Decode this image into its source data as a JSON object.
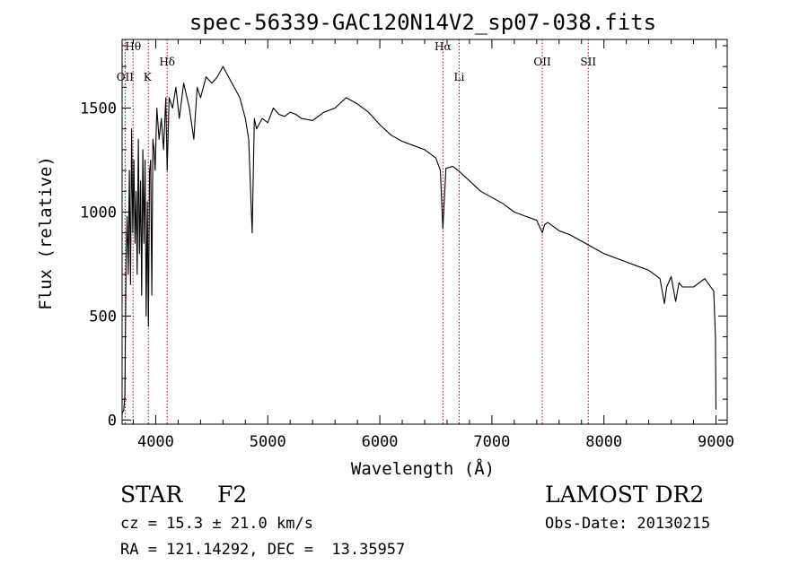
{
  "chart_data": {
    "type": "line",
    "title": "spec-56339-GAC120N14V2_sp07-038.fits",
    "xlabel": "Wavelength (Å)",
    "ylabel": "Flux (relative)",
    "xlim": [
      3700,
      9100
    ],
    "ylim": [
      -20,
      1830
    ],
    "x_ticks": [
      4000,
      5000,
      6000,
      7000,
      8000,
      9000
    ],
    "y_ticks": [
      0,
      500,
      1000,
      1500
    ],
    "grid": false,
    "line_color": "#000000",
    "marker_color": "#c00000",
    "lines": [
      {
        "name": "OII",
        "x": 3727
      },
      {
        "name": "Hθ",
        "x": 3798
      },
      {
        "name": "K",
        "x": 3934
      },
      {
        "name": "Hδ",
        "x": 4102
      },
      {
        "name": "Hα",
        "x": 6563
      },
      {
        "name": "Li",
        "x": 6708
      },
      {
        "name": "OII",
        "x": 7450
      },
      {
        "name": "SII",
        "x": 7860
      }
    ],
    "series": [
      {
        "x": [
          3700,
          3715,
          3725,
          3735,
          3745,
          3755,
          3765,
          3775,
          3785,
          3795,
          3805,
          3815,
          3825,
          3835,
          3845,
          3855,
          3865,
          3875,
          3885,
          3895,
          3905,
          3915,
          3925,
          3935,
          3945,
          3955,
          3965,
          3975,
          3985,
          3995,
          4010,
          4030,
          4050,
          4070,
          4090,
          4102,
          4120,
          4150,
          4180,
          4210,
          4250,
          4300,
          4340,
          4370,
          4400,
          4450,
          4500,
          4550,
          4600,
          4650,
          4700,
          4750,
          4800,
          4830,
          4861,
          4880,
          4900,
          4950,
          5000,
          5050,
          5100,
          5150,
          5200,
          5250,
          5300,
          5400,
          5500,
          5600,
          5700,
          5800,
          5900,
          6000,
          6100,
          6200,
          6300,
          6400,
          6500,
          6540,
          6563,
          6590,
          6650,
          6700,
          6800,
          6900,
          7000,
          7100,
          7200,
          7300,
          7400,
          7450,
          7470,
          7500,
          7600,
          7700,
          7800,
          7900,
          8000,
          8100,
          8200,
          8300,
          8400,
          8500,
          8540,
          8560,
          8600,
          8640,
          8670,
          8700,
          8800,
          8900,
          8980,
          8995,
          9000
        ],
        "y": [
          30,
          50,
          120,
          750,
          980,
          700,
          1200,
          650,
          1400,
          900,
          1250,
          850,
          1100,
          700,
          1350,
          800,
          1150,
          600,
          1300,
          850,
          1250,
          500,
          1050,
          450,
          1200,
          1250,
          600,
          1350,
          1300,
          1200,
          1500,
          1350,
          1450,
          1300,
          1550,
          1200,
          1550,
          1500,
          1600,
          1450,
          1620,
          1500,
          1350,
          1600,
          1550,
          1650,
          1620,
          1650,
          1700,
          1650,
          1600,
          1550,
          1450,
          1350,
          900,
          1450,
          1400,
          1450,
          1430,
          1500,
          1470,
          1460,
          1480,
          1470,
          1450,
          1440,
          1480,
          1500,
          1550,
          1520,
          1480,
          1420,
          1370,
          1340,
          1320,
          1300,
          1260,
          1200,
          920,
          1210,
          1220,
          1200,
          1150,
          1100,
          1070,
          1040,
          1000,
          980,
          960,
          900,
          940,
          950,
          910,
          890,
          860,
          830,
          800,
          780,
          760,
          740,
          720,
          680,
          560,
          640,
          690,
          570,
          660,
          640,
          640,
          680,
          620,
          400,
          50
        ]
      }
    ]
  },
  "info": {
    "class_label": "STAR",
    "subclass": "F2",
    "cz": "cz = 15.3 ± 21.0 km/s",
    "coords": "RA = 121.14292, DEC =  13.35957",
    "survey": "LAMOST DR2",
    "obs_date": "Obs-Date: 20130215"
  }
}
